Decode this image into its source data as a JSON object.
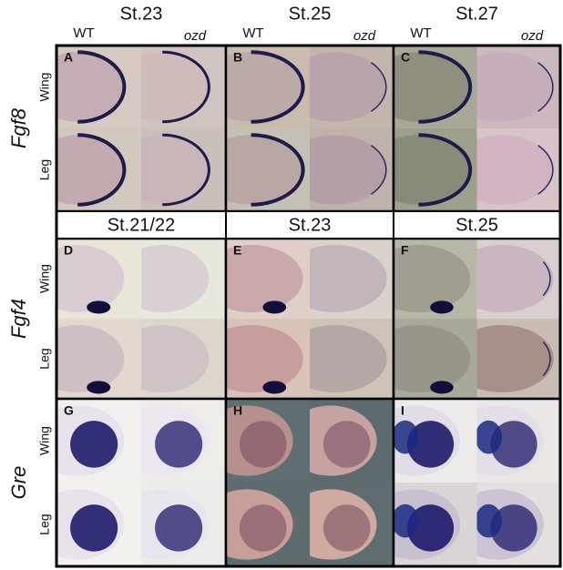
{
  "column_headers": [
    {
      "stage": "St.23",
      "wt": "WT",
      "ozd": "ozd"
    },
    {
      "stage": "St.25",
      "wt": "WT",
      "ozd": "ozd"
    },
    {
      "stage": "St.27",
      "wt": "WT",
      "ozd": "ozd"
    }
  ],
  "gene_rows": [
    {
      "gene": "Fgf8",
      "panels": [
        "A",
        "B",
        "C"
      ],
      "tissues": [
        "Wing",
        "Leg"
      ]
    },
    {
      "gene": "Fgf4",
      "stages": [
        "St.21/22",
        "St.23",
        "St.25"
      ],
      "panels": [
        "D",
        "E",
        "F"
      ],
      "tissues": [
        "Wing",
        "Leg"
      ]
    },
    {
      "gene": "Gre",
      "panels": [
        "G",
        "H",
        "I"
      ],
      "tissues": [
        "Wing",
        "Leg"
      ]
    }
  ]
}
